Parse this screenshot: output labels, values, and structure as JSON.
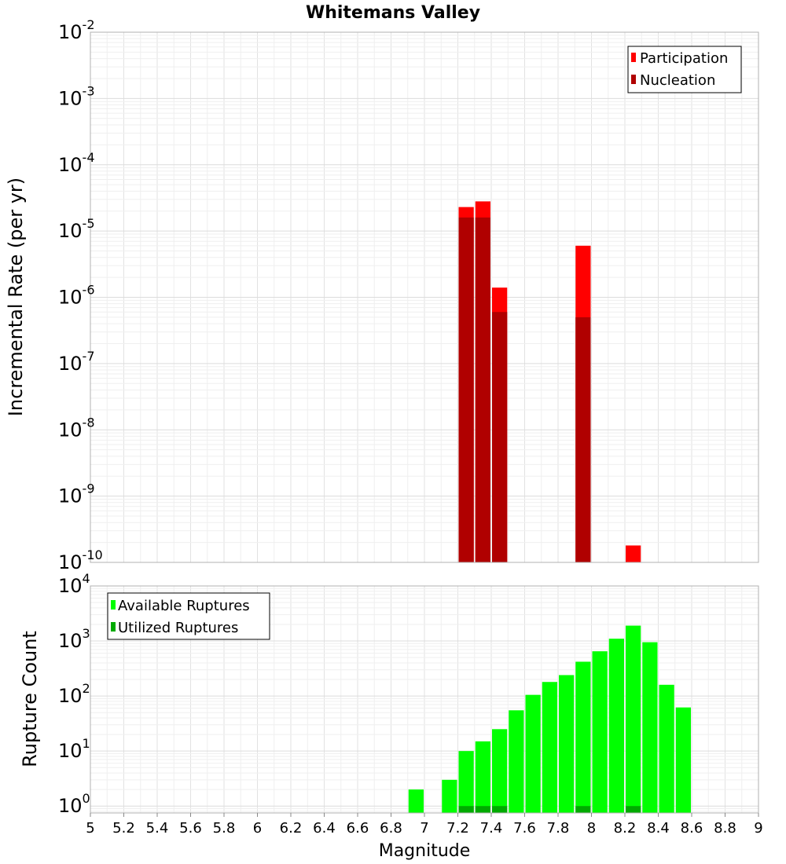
{
  "chart_data": [
    {
      "type": "bar",
      "title": "Whitemans Valley",
      "xlabel": "Magnitude",
      "ylabel": "Incremental Rate (per yr)",
      "yscale": "log",
      "xlim": [
        5,
        9
      ],
      "ylim": [
        1e-10,
        0.01
      ],
      "ytick_exponents": [
        "-10",
        "-9",
        "-8",
        "-7",
        "-6",
        "-5",
        "-4",
        "-3",
        "-2"
      ],
      "legend": {
        "position": "top-right",
        "entries": [
          "Participation",
          "Nucleation"
        ]
      },
      "colors": {
        "Participation": "#ff0000",
        "Nucleation": "#b00000"
      },
      "series": [
        {
          "name": "Participation",
          "x": [
            7.25,
            7.35,
            7.45,
            7.95,
            8.25
          ],
          "values": [
            2.3e-05,
            2.8e-05,
            1.4e-06,
            6e-06,
            1.8e-10
          ]
        },
        {
          "name": "Nucleation",
          "x": [
            7.25,
            7.35,
            7.45,
            7.95
          ],
          "values": [
            1.6e-05,
            1.6e-05,
            6e-07,
            5e-07
          ]
        }
      ]
    },
    {
      "type": "bar",
      "xlabel": "Magnitude",
      "ylabel": "Rupture Count",
      "yscale": "log",
      "xlim": [
        5,
        9
      ],
      "ylim": [
        0.75,
        10000
      ],
      "ytick_exponents": [
        "0",
        "1",
        "2",
        "3",
        "4"
      ],
      "legend": {
        "position": "top-left",
        "entries": [
          "Available Ruptures",
          "Utilized Ruptures"
        ]
      },
      "colors": {
        "Available Ruptures": "#00ff00",
        "Utilized Ruptures": "#00aa00"
      },
      "series": [
        {
          "name": "Available Ruptures",
          "x": [
            6.95,
            7.15,
            7.25,
            7.35,
            7.45,
            7.55,
            7.65,
            7.75,
            7.85,
            7.95,
            8.05,
            8.15,
            8.25,
            8.35,
            8.45,
            8.55
          ],
          "values": [
            2,
            3,
            10,
            15,
            25,
            55,
            105,
            180,
            240,
            420,
            650,
            1100,
            1900,
            950,
            160,
            62
          ]
        },
        {
          "name": "Utilized Ruptures",
          "x": [
            7.25,
            7.35,
            7.45,
            7.95,
            8.25
          ],
          "values": [
            1,
            1,
            1,
            1,
            1
          ]
        }
      ],
      "xticks": [
        "5",
        "5.2",
        "5.4",
        "5.6",
        "5.8",
        "6",
        "6.2",
        "6.4",
        "6.6",
        "6.8",
        "7",
        "7.2",
        "7.4",
        "7.6",
        "7.8",
        "8",
        "8.2",
        "8.4",
        "8.6",
        "8.8",
        "9"
      ]
    }
  ]
}
